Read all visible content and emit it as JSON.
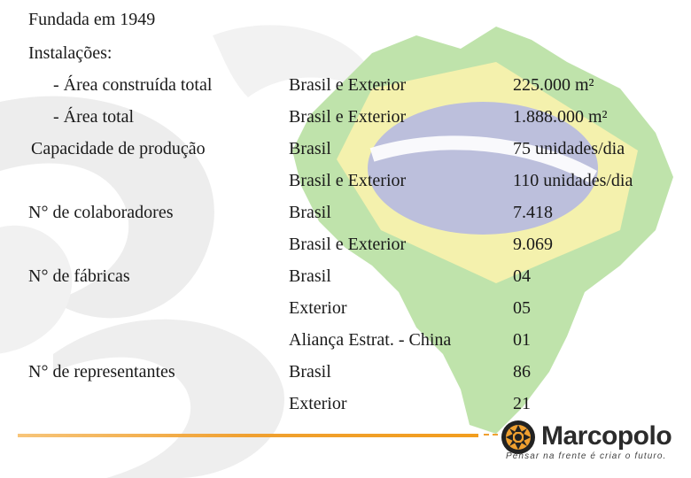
{
  "header": {
    "founded": "Fundada em 1949",
    "facilities": "Instalações:"
  },
  "rows": [
    {
      "label": "- Área construída total",
      "scope": "Brasil e Exterior",
      "value": "225.000 m²"
    },
    {
      "label": "- Área total",
      "scope": "Brasil e Exterior",
      "value": "1.888.000 m²"
    },
    {
      "label": "Capacidade de produção",
      "scope": "Brasil",
      "value": "75 unidades/dia"
    },
    {
      "label": "",
      "scope": "Brasil e Exterior",
      "value": "110 unidades/dia"
    },
    {
      "label": "N° de colaboradores",
      "scope": "Brasil",
      "value": "7.418"
    },
    {
      "label": "",
      "scope": "Brasil e Exterior",
      "value": "9.069"
    },
    {
      "label": "N° de fábricas",
      "scope": "Brasil",
      "value": "04"
    },
    {
      "label": "",
      "scope": "Exterior",
      "value": "05"
    },
    {
      "label": "",
      "scope": "Aliança Estrat. - China",
      "value": "01"
    },
    {
      "label": "N° de representantes",
      "scope": "Brasil",
      "value": "86"
    },
    {
      "label": "",
      "scope": "Exterior",
      "value": "21"
    }
  ],
  "logo": {
    "name": "Marcopolo",
    "slogan": "Pensar na frente é criar o futuro."
  },
  "colors": {
    "accent_orange": "#f0a030",
    "map_green": "#b8dfa4",
    "map_yellow": "#f4f0a8",
    "map_blue": "#b9bcd8",
    "swirl_gray": "#ececec"
  },
  "background": {
    "map_icon": "brazil-flag-map",
    "watermark_icon": "swirl-watermark"
  }
}
